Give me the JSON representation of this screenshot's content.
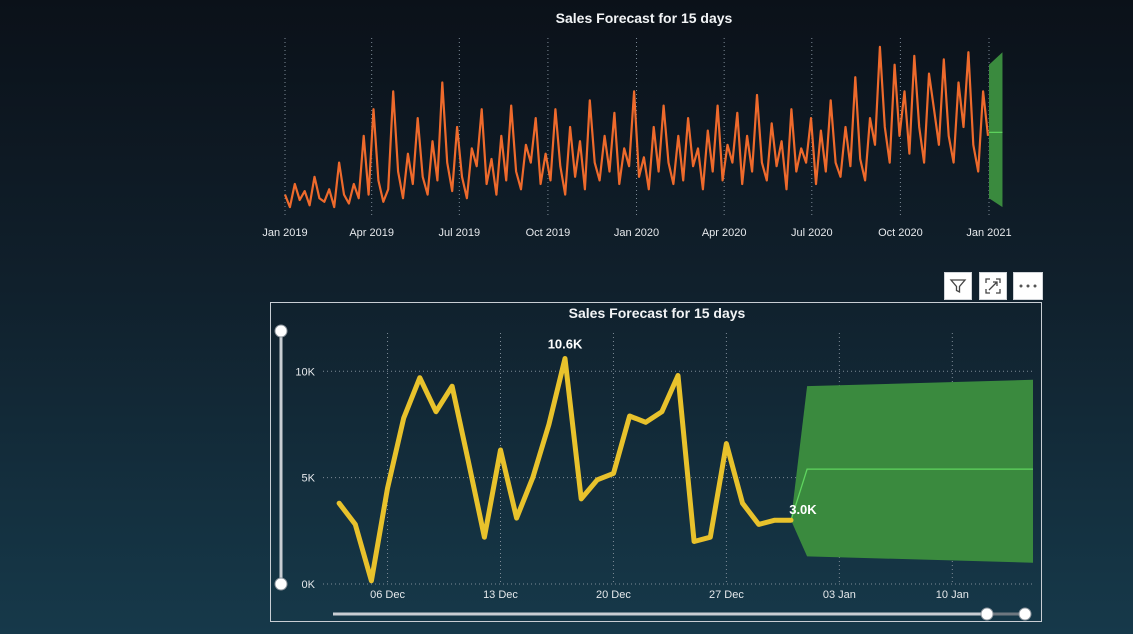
{
  "top_chart": {
    "title": "Sales Forecast for 15 days"
  },
  "bottom_chart": {
    "title": "Sales Forecast for 15 days",
    "peak_label": "10.6K",
    "end_label": "3.0K"
  },
  "header_buttons": {
    "filter_icon": "filter-icon",
    "focus_icon": "focus-mode-icon",
    "more_icon": "more-options-icon"
  },
  "colors": {
    "history_line_top": "#ee6a2c",
    "history_line_bottom": "#e8c22c",
    "forecast_band": "#3a8a3e",
    "forecast_line": "#5fd45f",
    "grid": "#7d8a96",
    "label": "#e6e9ec"
  },
  "chart_data": [
    {
      "type": "line",
      "title": "Sales Forecast for 15 days",
      "x_tick_labels": [
        "Jan 2019",
        "Apr 2019",
        "Jul 2019",
        "Oct 2019",
        "Jan 2020",
        "Apr 2020",
        "Jul 2020",
        "Oct 2020",
        "Jan 2021"
      ],
      "x_tick_dates": [
        "2019-01-01",
        "2019-04-01",
        "2019-07-01",
        "2019-10-01",
        "2020-01-01",
        "2020-04-01",
        "2020-07-01",
        "2020-10-01",
        "2021-01-01"
      ],
      "y_axis_visible": false,
      "grid": "vertical dotted",
      "series": [
        {
          "x_start": "2019-01-01",
          "x_end": "2020-12-31",
          "y_relative_max": 1,
          "values_relative": [
            0.12,
            0.05,
            0.18,
            0.09,
            0.14,
            0.06,
            0.22,
            0.1,
            0.08,
            0.15,
            0.05,
            0.3,
            0.12,
            0.07,
            0.18,
            0.1,
            0.45,
            0.12,
            0.6,
            0.2,
            0.08,
            0.15,
            0.7,
            0.25,
            0.1,
            0.35,
            0.18,
            0.55,
            0.22,
            0.12,
            0.42,
            0.2,
            0.75,
            0.3,
            0.14,
            0.5,
            0.22,
            0.1,
            0.38,
            0.28,
            0.6,
            0.18,
            0.32,
            0.12,
            0.45,
            0.2,
            0.62,
            0.25,
            0.15,
            0.4,
            0.3,
            0.55,
            0.18,
            0.35,
            0.2,
            0.6,
            0.28,
            0.12,
            0.5,
            0.22,
            0.42,
            0.15,
            0.65,
            0.3,
            0.2,
            0.45,
            0.25,
            0.58,
            0.18,
            0.38,
            0.28,
            0.7,
            0.22,
            0.33,
            0.15,
            0.5,
            0.25,
            0.62,
            0.3,
            0.18,
            0.45,
            0.2,
            0.55,
            0.28,
            0.38,
            0.15,
            0.48,
            0.25,
            0.62,
            0.2,
            0.4,
            0.3,
            0.58,
            0.18,
            0.45,
            0.25,
            0.68,
            0.3,
            0.2,
            0.52,
            0.28,
            0.42,
            0.15,
            0.6,
            0.25,
            0.38,
            0.3,
            0.55,
            0.18,
            0.48,
            0.25,
            0.65,
            0.3,
            0.22,
            0.5,
            0.28,
            0.78,
            0.32,
            0.2,
            0.55,
            0.4,
            0.95,
            0.5,
            0.3,
            0.85,
            0.45,
            0.7,
            0.35,
            0.9,
            0.5,
            0.3,
            0.8,
            0.6,
            0.4,
            0.88,
            0.45,
            0.3,
            0.75,
            0.5,
            0.92,
            0.4,
            0.25,
            0.7,
            0.45
          ],
          "line_color": "#ee6a2c"
        }
      ],
      "forecast": {
        "x_start": "2021-01-01",
        "x_end": "2021-01-15",
        "band_relative": [
          [
            0.1,
            0.85
          ],
          [
            0.05,
            0.92
          ]
        ],
        "center_relative": 0.47
      }
    },
    {
      "type": "line",
      "title": "Sales Forecast for 15 days",
      "x_tick_labels": [
        "06 Dec",
        "13 Dec",
        "20 Dec",
        "27 Dec",
        "03 Jan",
        "10 Jan"
      ],
      "y_tick_labels": [
        "0K",
        "5K",
        "10K"
      ],
      "y_ticks": [
        0,
        5000,
        10000
      ],
      "ylim": [
        0,
        11800
      ],
      "x_domain": [
        "2020-12-02",
        "2021-01-15"
      ],
      "grid": "dotted",
      "series": [
        {
          "dates": [
            "2020-12-03",
            "2020-12-04",
            "2020-12-05",
            "2020-12-06",
            "2020-12-07",
            "2020-12-08",
            "2020-12-09",
            "2020-12-10",
            "2020-12-11",
            "2020-12-12",
            "2020-12-13",
            "2020-12-14",
            "2020-12-15",
            "2020-12-16",
            "2020-12-17",
            "2020-12-18",
            "2020-12-19",
            "2020-12-20",
            "2020-12-21",
            "2020-12-22",
            "2020-12-23",
            "2020-12-24",
            "2020-12-25",
            "2020-12-26",
            "2020-12-27",
            "2020-12-28",
            "2020-12-29",
            "2020-12-30",
            "2020-12-31"
          ],
          "values": [
            3800,
            2800,
            150,
            4500,
            7800,
            9700,
            8100,
            9300,
            5800,
            2200,
            6300,
            3100,
            5000,
            7500,
            10600,
            4000,
            4900,
            5200,
            7900,
            7600,
            8100,
            9800,
            2000,
            2200,
            6600,
            3800,
            2800,
            3000,
            3000
          ],
          "line_color": "#e8c22c"
        }
      ],
      "forecast": {
        "dates": [
          "2021-01-01",
          "2021-01-15"
        ],
        "lower": [
          1300,
          1000
        ],
        "upper": [
          9300,
          9600
        ],
        "center": [
          5400,
          5400
        ],
        "start_date": "2020-12-31"
      },
      "annotations": [
        {
          "date": "2020-12-17",
          "value": 10600,
          "text": "10.6K"
        },
        {
          "date": "2020-12-31",
          "value": 3000,
          "text": "3.0K"
        }
      ]
    }
  ]
}
